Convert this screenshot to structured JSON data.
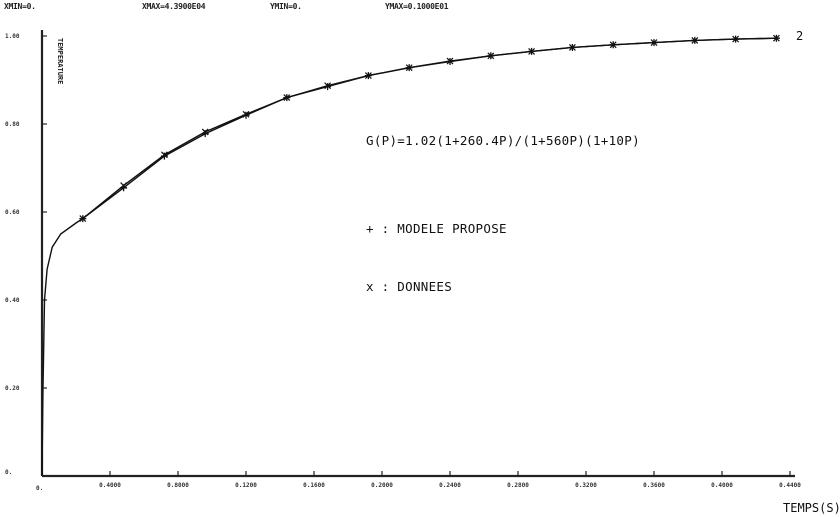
{
  "header": {
    "f1": "XMIN=0.",
    "f2": "XMAX=4.3900E04",
    "f3": "YMIN=0.",
    "f4": "YMAX=0.1000E01"
  },
  "colors": {
    "axis": "#222222",
    "curve": "#111111",
    "background": "#ffffff"
  },
  "chart_data": {
    "type": "line",
    "xlabel": "TEMPS(S)",
    "ylabel": "TEMPERATURE",
    "xlim": [
      0,
      44000
    ],
    "ylim": [
      0,
      1.0
    ],
    "x_ticks": [
      0,
      4000,
      8000,
      12000,
      16000,
      20000,
      24000,
      28000,
      32000,
      36000,
      40000,
      44000
    ],
    "x_tick_labels": [
      "0.",
      "0.4000",
      "0.8000",
      "0.1200",
      "0.1600",
      "0.2000",
      "0.2400",
      "0.2800",
      "0.3200",
      "0.3600",
      "0.4000",
      "0.4400"
    ],
    "y_ticks": [
      0,
      0.2,
      0.4,
      0.6,
      0.8,
      1.0
    ],
    "y_tick_labels": [
      "0.",
      "0.20",
      "0.40",
      "0.60",
      "0.80",
      "1.00"
    ],
    "curve_label": "2",
    "annotations": [
      "G(P)=1.02(1+260.4P)/(1+560P)(1+10P)",
      "+ : MODELE PROPOSE",
      "x : DONNEES"
    ],
    "series": [
      {
        "name": "MODELE PROPOSE",
        "marker": "+",
        "x": [
          0,
          60,
          150,
          300,
          600,
          1100,
          2000,
          2400,
          4800,
          7200,
          9600,
          12000,
          14400,
          16800,
          19200,
          21600,
          24000,
          26400,
          28800,
          31200,
          33600,
          36000,
          38400,
          40800,
          43200
        ],
        "y": [
          0.0,
          0.2,
          0.4,
          0.47,
          0.52,
          0.55,
          0.575,
          0.585,
          0.655,
          0.727,
          0.778,
          0.82,
          0.86,
          0.885,
          0.91,
          0.928,
          0.942,
          0.955,
          0.965,
          0.974,
          0.98,
          0.985,
          0.99,
          0.993,
          0.995
        ]
      },
      {
        "name": "DONNEES",
        "marker": "x",
        "x": [
          2400,
          4800,
          7200,
          9600,
          12000,
          14400,
          16800,
          19200,
          21600,
          24000,
          26400,
          28800,
          31200,
          33600,
          36000,
          38400,
          40800,
          43200
        ],
        "y": [
          0.585,
          0.66,
          0.73,
          0.782,
          0.822,
          0.86,
          0.887,
          0.91,
          0.928,
          0.943,
          0.955,
          0.965,
          0.974,
          0.98,
          0.985,
          0.99,
          0.993,
          0.995
        ]
      }
    ]
  }
}
